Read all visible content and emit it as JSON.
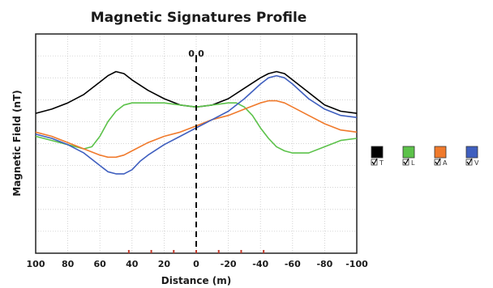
{
  "chart_data": {
    "type": "line",
    "title": "Magnetic Signatures Profile",
    "xlabel": "Distance (m)",
    "ylabel": "Magnetic Field (nT)",
    "xlim": [
      100,
      -100
    ],
    "ylim": [
      -5,
      5.5
    ],
    "x_ticks": [
      100,
      80,
      60,
      40,
      20,
      0,
      -20,
      -40,
      -60,
      -80,
      -100
    ],
    "center_label": "0.0",
    "grid": true,
    "grid_style": "dotted",
    "legend_position": "right",
    "sensor_markers": [
      42,
      28,
      14,
      0,
      -14,
      -28,
      -42
    ],
    "series": [
      {
        "name": "T",
        "color": "#000000",
        "x": [
          100,
          90,
          80,
          70,
          60,
          55,
          50,
          45,
          40,
          30,
          20,
          10,
          0,
          -10,
          -20,
          -30,
          -40,
          -45,
          -50,
          -55,
          -60,
          -70,
          -80,
          -90,
          -100
        ],
        "y": [
          1.7,
          1.9,
          2.2,
          2.6,
          3.2,
          3.5,
          3.7,
          3.6,
          3.3,
          2.8,
          2.4,
          2.1,
          2.0,
          2.1,
          2.4,
          2.9,
          3.4,
          3.6,
          3.7,
          3.6,
          3.3,
          2.7,
          2.1,
          1.8,
          1.7
        ]
      },
      {
        "name": "L",
        "color": "#5cc24a",
        "x": [
          100,
          90,
          80,
          70,
          65,
          60,
          55,
          50,
          45,
          40,
          30,
          20,
          10,
          0,
          -10,
          -20,
          -25,
          -30,
          -35,
          -40,
          -45,
          -50,
          -55,
          -60,
          -70,
          -80,
          -90,
          -100
        ],
        "y": [
          0.6,
          0.4,
          0.2,
          0.0,
          0.1,
          0.6,
          1.3,
          1.8,
          2.1,
          2.2,
          2.2,
          2.2,
          2.1,
          2.0,
          2.1,
          2.2,
          2.2,
          2.0,
          1.6,
          1.0,
          0.5,
          0.1,
          -0.1,
          -0.2,
          -0.2,
          0.1,
          0.4,
          0.5
        ]
      },
      {
        "name": "A",
        "color": "#f07a2c",
        "x": [
          100,
          90,
          80,
          70,
          60,
          55,
          50,
          45,
          40,
          30,
          20,
          10,
          0,
          -10,
          -20,
          -30,
          -40,
          -45,
          -50,
          -55,
          -60,
          -70,
          -80,
          -90,
          -100
        ],
        "y": [
          0.8,
          0.6,
          0.3,
          0.0,
          -0.3,
          -0.4,
          -0.4,
          -0.3,
          -0.1,
          0.3,
          0.6,
          0.8,
          1.1,
          1.4,
          1.6,
          1.9,
          2.2,
          2.3,
          2.3,
          2.2,
          2.0,
          1.6,
          1.2,
          0.9,
          0.8
        ]
      },
      {
        "name": "V",
        "color": "#3f5fbf",
        "x": [
          100,
          90,
          80,
          70,
          60,
          55,
          50,
          45,
          40,
          35,
          30,
          20,
          10,
          0,
          -10,
          -20,
          -30,
          -40,
          -45,
          -50,
          -55,
          -60,
          -70,
          -80,
          -90,
          -100
        ],
        "y": [
          0.7,
          0.5,
          0.2,
          -0.2,
          -0.8,
          -1.1,
          -1.2,
          -1.2,
          -1.0,
          -0.6,
          -0.3,
          0.2,
          0.6,
          1.0,
          1.4,
          1.8,
          2.4,
          3.1,
          3.4,
          3.5,
          3.4,
          3.1,
          2.4,
          1.9,
          1.6,
          1.5
        ]
      }
    ]
  }
}
